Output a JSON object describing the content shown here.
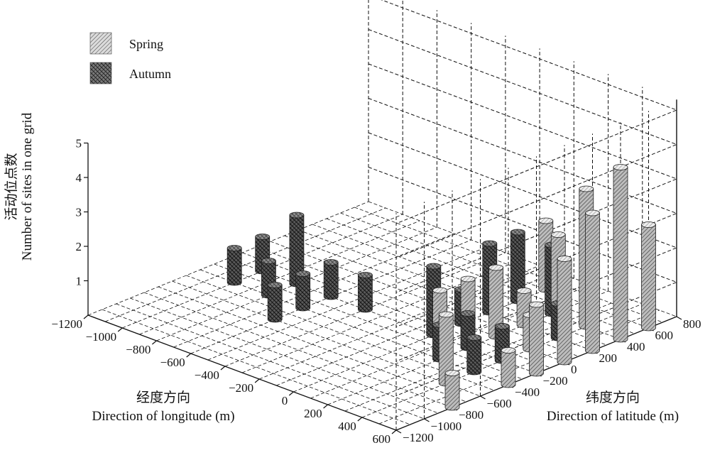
{
  "chart_data": {
    "type": "bar3d",
    "series": [
      {
        "name": "Spring",
        "points": [
          {
            "x": 0,
            "y": 600,
            "z": 2
          },
          {
            "x": 200,
            "y": 200,
            "z": 1
          },
          {
            "x": 200,
            "y": 0,
            "z": 2
          },
          {
            "x": 200,
            "y": -200,
            "z": 2
          },
          {
            "x": 200,
            "y": -400,
            "z": 2
          },
          {
            "x": 400,
            "y": 400,
            "z": 4
          },
          {
            "x": 400,
            "y": 200,
            "z": 3
          },
          {
            "x": 400,
            "y": -200,
            "z": 1
          },
          {
            "x": 400,
            "y": 0,
            "z": 1
          },
          {
            "x": 400,
            "y": -600,
            "z": 2
          },
          {
            "x": 600,
            "y": 600,
            "z": 3
          },
          {
            "x": 600,
            "y": 400,
            "z": 5
          },
          {
            "x": 600,
            "y": 200,
            "z": 4
          },
          {
            "x": 600,
            "y": 0,
            "z": 3
          },
          {
            "x": 600,
            "y": -200,
            "z": 2
          },
          {
            "x": 600,
            "y": -400,
            "z": 1
          },
          {
            "x": 600,
            "y": -800,
            "z": 1
          }
        ]
      },
      {
        "name": "Autumn",
        "points": [
          {
            "x": -1000,
            "y": -200,
            "z": 1
          },
          {
            "x": -1000,
            "y": -400,
            "z": 1
          },
          {
            "x": -800,
            "y": -400,
            "z": 1
          },
          {
            "x": -800,
            "y": -200,
            "z": 2
          },
          {
            "x": -600,
            "y": -400,
            "z": 1
          },
          {
            "x": -600,
            "y": -200,
            "z": 1
          },
          {
            "x": -600,
            "y": -600,
            "z": 1
          },
          {
            "x": -400,
            "y": -200,
            "z": 1
          },
          {
            "x": 0,
            "y": 400,
            "z": 2
          },
          {
            "x": 0,
            "y": 200,
            "z": 2
          },
          {
            "x": 0,
            "y": 0,
            "z": 1
          },
          {
            "x": 0,
            "y": -200,
            "z": 2
          },
          {
            "x": 200,
            "y": 400,
            "z": 2
          },
          {
            "x": 200,
            "y": -200,
            "z": 1
          },
          {
            "x": 200,
            "y": -400,
            "z": 1
          },
          {
            "x": 400,
            "y": 200,
            "z": 1
          },
          {
            "x": 400,
            "y": -200,
            "z": 1
          },
          {
            "x": 400,
            "y": -400,
            "z": 1
          }
        ]
      }
    ],
    "xlabel_cn": "经度方向",
    "xlabel": "Direction of longitude (m)",
    "ylabel_cn": "纬度方向",
    "ylabel": "Direction of latitude (m)",
    "zlabel_cn": "活动位点数",
    "zlabel": "Number of sites in one grid",
    "xlim": [
      -1200,
      600
    ],
    "ylim": [
      -1200,
      800
    ],
    "zlim": [
      0,
      5
    ],
    "x_ticks": [
      "−1200",
      "−1000",
      "−800",
      "−600",
      "−400",
      "−200",
      "0",
      "200",
      "400",
      "600"
    ],
    "y_ticks": [
      "−1200",
      "−1000",
      "−800",
      "−600",
      "−400",
      "−200",
      "0",
      "200",
      "400",
      "600",
      "800"
    ],
    "z_ticks": [
      "1",
      "2",
      "3",
      "4",
      "5"
    ],
    "legend_position": "top-left",
    "grid": true,
    "colors": {
      "spring": "#b8b8b8",
      "autumn": "#5a5a5a",
      "axis": "#111111"
    }
  }
}
